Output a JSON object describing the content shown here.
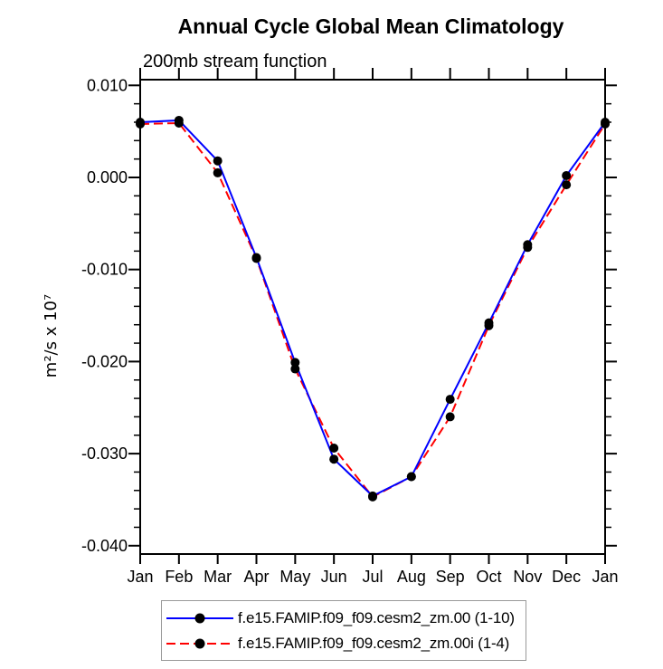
{
  "header": {
    "title": "Annual Cycle Global Mean Climatology",
    "subtitle": "200mb stream function"
  },
  "chart_data": {
    "type": "line",
    "title": "Annual Cycle Global Mean Climatology",
    "subtitle": "200mb stream function",
    "ylabel": "m²/s x 10⁷",
    "xlabel": "",
    "categories": [
      "Jan",
      "Feb",
      "Mar",
      "Apr",
      "May",
      "Jun",
      "Jul",
      "Aug",
      "Sep",
      "Oct",
      "Nov",
      "Dec",
      "Jan"
    ],
    "series": [
      {
        "name": "f.e15.FAMIP.f09_f09.cesm2_zm.00 (1-10)",
        "color": "#0000ff",
        "line_style": "solid",
        "marker": "filled-circle",
        "marker_color": "#000000",
        "values": [
          0.006,
          0.0062,
          0.0018,
          -0.0087,
          -0.0201,
          -0.0306,
          -0.0346,
          -0.0325,
          -0.0241,
          -0.0158,
          -0.0073,
          0.0002,
          0.006
        ]
      },
      {
        "name": "f.e15.FAMIP.f09_f09.cesm2_zm.00i (1-4)",
        "color": "#ff0000",
        "line_style": "dashed",
        "marker": "filled-circle",
        "marker_color": "#000000",
        "values": [
          0.0058,
          0.0059,
          0.0005,
          -0.0088,
          -0.0208,
          -0.0294,
          -0.0347,
          -0.0325,
          -0.026,
          -0.0161,
          -0.0076,
          -0.0008,
          0.0058
        ]
      }
    ],
    "yaxis": {
      "tick_values": [
        0.01,
        0.0,
        -0.01,
        -0.02,
        -0.03,
        -0.04
      ],
      "tick_labels": [
        "0.010",
        "0.000",
        "-0.010",
        "-0.020",
        "-0.030",
        "-0.040"
      ],
      "minor_tick_step": 0.002,
      "ylim": [
        -0.0409,
        0.0106
      ]
    },
    "grid": false,
    "legend_position": "bottom",
    "axis_color": "#000000",
    "text_color": "#000000",
    "background_color": "#ffffff"
  }
}
